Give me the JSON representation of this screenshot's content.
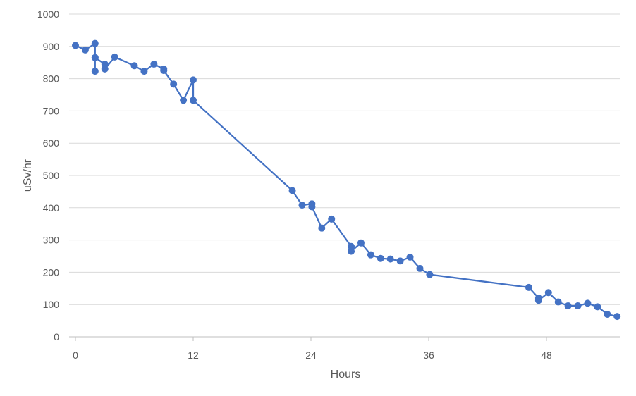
{
  "chart_data": {
    "type": "line",
    "xlabel": "Hours",
    "ylabel": "uSv/hr",
    "xlim": [
      0,
      55
    ],
    "ylim": [
      0,
      1000
    ],
    "xticks": [
      0,
      12,
      24,
      36,
      48
    ],
    "yticks": [
      0,
      100,
      200,
      300,
      400,
      500,
      600,
      700,
      800,
      900,
      1000
    ],
    "grid": true,
    "legend": "none",
    "color": "#4472C4",
    "series": [
      {
        "x": [
          0,
          1,
          2,
          2,
          2,
          2,
          3,
          3,
          4,
          6,
          7,
          8,
          9,
          9,
          10,
          11,
          12,
          12,
          22.1,
          23.1,
          24.1,
          24.1,
          25.1,
          26.1,
          28.1,
          28.1,
          29.1,
          30.1,
          31.1,
          32.1,
          33.1,
          34.1,
          35.1,
          36.1,
          46.2,
          47.2,
          47.2,
          48.2,
          49.2,
          50.2,
          51.2,
          52.2,
          53.2,
          54.2,
          55.2
        ],
        "y": [
          903,
          889,
          909,
          865,
          823,
          865,
          845,
          830,
          867,
          840,
          823,
          845,
          830,
          825,
          783,
          733,
          796,
          733,
          453,
          408,
          412,
          403,
          337,
          365,
          280,
          265,
          291,
          254,
          243,
          241,
          235,
          247,
          212,
          193,
          153,
          120,
          113,
          137,
          108,
          96,
          96,
          104,
          93,
          70,
          63
        ]
      }
    ]
  }
}
